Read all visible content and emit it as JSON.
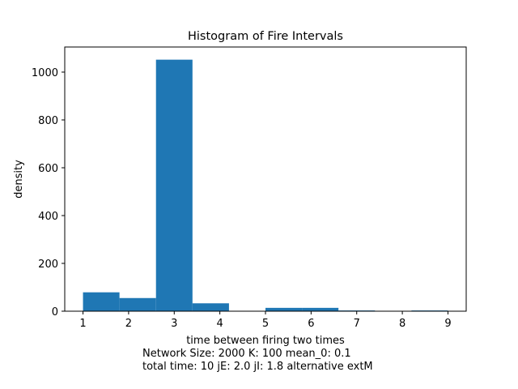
{
  "chart_data": {
    "type": "bar",
    "title": "Histogram of Fire Intervals",
    "xlabel": "time between firing two times",
    "ylabel": "density",
    "caption_lines": [
      "Network Size: 2000  K: 100  mean_0: 0.1",
      "total time: 10   jE: 2.0   jI: 1.8 alternative extM"
    ],
    "bins": [
      {
        "start": 1.0,
        "end": 1.8,
        "value": 79
      },
      {
        "start": 1.8,
        "end": 2.6,
        "value": 55
      },
      {
        "start": 2.6,
        "end": 3.4,
        "value": 1052
      },
      {
        "start": 3.4,
        "end": 4.2,
        "value": 33
      },
      {
        "start": 4.2,
        "end": 5.0,
        "value": 0
      },
      {
        "start": 5.0,
        "end": 5.8,
        "value": 14
      },
      {
        "start": 5.8,
        "end": 6.6,
        "value": 14
      },
      {
        "start": 6.6,
        "end": 7.4,
        "value": 3
      },
      {
        "start": 7.4,
        "end": 8.2,
        "value": 0
      },
      {
        "start": 8.2,
        "end": 9.0,
        "value": 3
      }
    ],
    "xlim": [
      0.6,
      9.4
    ],
    "ylim": [
      0,
      1105
    ],
    "xticks": [
      1,
      2,
      3,
      4,
      5,
      6,
      7,
      8,
      9
    ],
    "yticks": [
      0,
      200,
      400,
      600,
      800,
      1000
    ],
    "bar_color": "#1f77b4",
    "grid": false,
    "legend": "none"
  }
}
